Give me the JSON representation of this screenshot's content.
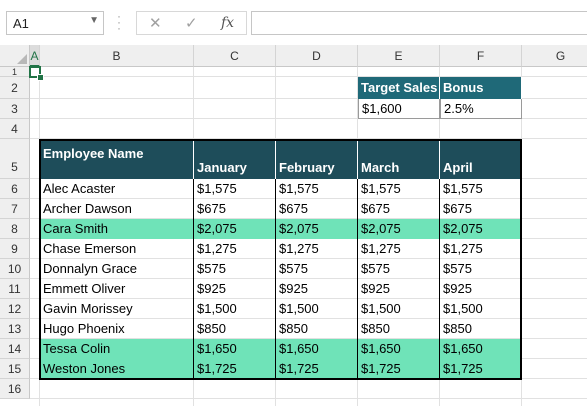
{
  "formula_bar": {
    "name_box": "A1",
    "cancel_icon": "✕",
    "enter_icon": "✓",
    "fx_label": "fx",
    "formula": ""
  },
  "columns": [
    "A",
    "B",
    "C",
    "D",
    "E",
    "F",
    "G"
  ],
  "rows": [
    "1",
    "2",
    "3",
    "4",
    "5",
    "6",
    "7",
    "8",
    "9",
    "10",
    "11",
    "12",
    "13",
    "14",
    "15",
    "16"
  ],
  "target": {
    "headers": [
      "Target Sales",
      "Bonus"
    ],
    "values": [
      "$1,600",
      "2.5%"
    ]
  },
  "table": {
    "headers": [
      "Employee Name",
      "January",
      "February",
      "March",
      "April"
    ],
    "rows": [
      {
        "name": "Alec Acaster",
        "values": [
          "$1,575",
          "$1,575",
          "$1,575",
          "$1,575"
        ],
        "highlight": false
      },
      {
        "name": "Archer Dawson",
        "values": [
          "$675",
          "$675",
          "$675",
          "$675"
        ],
        "highlight": false
      },
      {
        "name": "Cara Smith",
        "values": [
          "$2,075",
          "$2,075",
          "$2,075",
          "$2,075"
        ],
        "highlight": true
      },
      {
        "name": "Chase Emerson",
        "values": [
          "$1,275",
          "$1,275",
          "$1,275",
          "$1,275"
        ],
        "highlight": false
      },
      {
        "name": "Donnalyn Grace",
        "values": [
          "$575",
          "$575",
          "$575",
          "$575"
        ],
        "highlight": false
      },
      {
        "name": "Emmett Oliver",
        "values": [
          "$925",
          "$925",
          "$925",
          "$925"
        ],
        "highlight": false
      },
      {
        "name": "Gavin Morissey",
        "values": [
          "$1,500",
          "$1,500",
          "$1,500",
          "$1,500"
        ],
        "highlight": false
      },
      {
        "name": "Hugo Phoenix",
        "values": [
          "$850",
          "$850",
          "$850",
          "$850"
        ],
        "highlight": false
      },
      {
        "name": "Tessa Colin",
        "values": [
          "$1,650",
          "$1,650",
          "$1,650",
          "$1,650"
        ],
        "highlight": true
      },
      {
        "name": "Weston Jones",
        "values": [
          "$1,725",
          "$1,725",
          "$1,725",
          "$1,725"
        ],
        "highlight": true
      }
    ]
  },
  "colors": {
    "header_fill": "#1e4d5a",
    "target_header_fill": "#1f6978",
    "highlight_fill": "#6fe3b8",
    "selection": "#217346"
  }
}
